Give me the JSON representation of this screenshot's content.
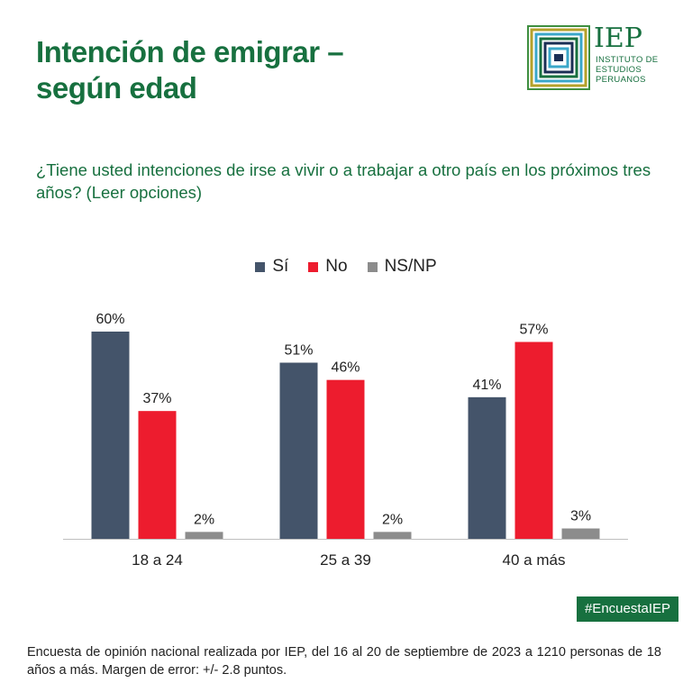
{
  "title": {
    "line1": "Intención de emigrar –",
    "line2": "según edad"
  },
  "logo": {
    "name": "IEP",
    "subtitle": "INSTITUTO DE ESTUDIOS PERUANOS"
  },
  "question": "¿Tiene usted intenciones de irse a vivir o a trabajar a otro país en los próximos tres años? (Leer opciones)",
  "hashtag": "#EncuestaIEP",
  "footnote": "Encuesta de opinión nacional realizada por IEP, del 16 al 20 de septiembre de 2023 a 1210 personas de 18 años a más. Margen de error: +/- 2.8 puntos.",
  "colors": {
    "brand_green": "#17703f",
    "si": "#44546a",
    "no": "#ed1c2e",
    "nsnp": "#8c8c8c"
  },
  "chart_data": {
    "type": "bar",
    "categories": [
      "18 a 24",
      "25 a 39",
      "40 a más"
    ],
    "series": [
      {
        "name": "Sí",
        "color": "#44546a",
        "values": [
          60,
          51,
          41
        ],
        "labels": [
          "60%",
          "51%",
          "41%"
        ]
      },
      {
        "name": "No",
        "color": "#ed1c2e",
        "values": [
          37,
          46,
          57
        ],
        "labels": [
          "37%",
          "46%",
          "57%"
        ]
      },
      {
        "name": "NS/NP",
        "color": "#8c8c8c",
        "values": [
          2,
          2,
          3
        ],
        "labels": [
          "2%",
          "2%",
          "3%"
        ]
      }
    ],
    "legend": "top-center",
    "ylim": [
      0,
      60
    ],
    "grid": false
  }
}
